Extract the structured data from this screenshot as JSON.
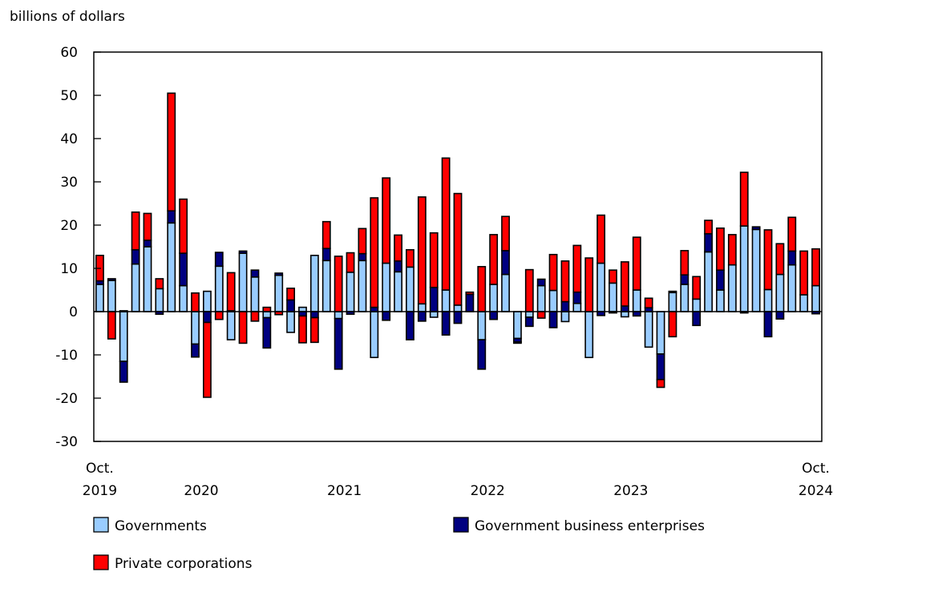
{
  "chart_data": {
    "type": "bar",
    "stacked": true,
    "ylabel": "billions of dollars",
    "ylim": [
      -30,
      60
    ],
    "yticks": [
      60,
      50,
      40,
      30,
      20,
      10,
      0,
      -10,
      -20,
      -30
    ],
    "grid": false,
    "legend_placement": "bottom",
    "x_tick_labels": [
      {
        "label": [
          "Oct.",
          "2019"
        ],
        "month": "2019-10"
      },
      {
        "label": [
          "",
          "2020"
        ],
        "month": "2020"
      },
      {
        "label": [
          "",
          "2021"
        ],
        "month": "2021"
      },
      {
        "label": [
          "",
          "2022"
        ],
        "month": "2022"
      },
      {
        "label": [
          "",
          "2023"
        ],
        "month": "2023"
      },
      {
        "label": [
          "Oct.",
          "2024"
        ],
        "month": "2024-10"
      }
    ],
    "categories": [
      "2019-10",
      "2019-11",
      "2019-12",
      "2020-01",
      "2020-02",
      "2020-03",
      "2020-04",
      "2020-05",
      "2020-06",
      "2020-07",
      "2020-08",
      "2020-09",
      "2020-10",
      "2020-11",
      "2020-12",
      "2021-01",
      "2021-02",
      "2021-03",
      "2021-04",
      "2021-05",
      "2021-06",
      "2021-07",
      "2021-08",
      "2021-09",
      "2021-10",
      "2021-11",
      "2021-12",
      "2022-01",
      "2022-02",
      "2022-03",
      "2022-04",
      "2022-05",
      "2022-06",
      "2022-07",
      "2022-08",
      "2022-09",
      "2022-10",
      "2022-11",
      "2022-12",
      "2023-01",
      "2023-02",
      "2023-03",
      "2023-04",
      "2023-05",
      "2023-06",
      "2023-07",
      "2023-08",
      "2023-09",
      "2023-10",
      "2023-11",
      "2023-12",
      "2024-01",
      "2024-02",
      "2024-03",
      "2024-04",
      "2024-05",
      "2024-06",
      "2024-07",
      "2024-08",
      "2024-09",
      "2024-10"
    ],
    "series": [
      {
        "name": "Governments",
        "color": "#99CCFF",
        "values": [
          6.3,
          7.2,
          -11.5,
          11,
          15,
          5.3,
          20.5,
          6,
          -7.5,
          4.7,
          10.5,
          -6.5,
          13.5,
          8,
          -1.4,
          8.4,
          -4.8,
          1,
          13,
          11.8,
          -1.6,
          9.1,
          11.8,
          -10.6,
          11.2,
          9.2,
          10.3,
          1.8,
          -1.3,
          5,
          1.5,
          0,
          -6.5,
          6.3,
          8.6,
          -6.2,
          -1.3,
          6,
          4.9,
          -2.3,
          1.9,
          -10.6,
          11.2,
          6.6,
          -1.2,
          5,
          -8.2,
          -9.8,
          4.4,
          6.3,
          2.9,
          13.8,
          5,
          10.8,
          19.8,
          19,
          5.1,
          8.6,
          10.8,
          3.9,
          6
        ]
      },
      {
        "name": "Government business enterprises",
        "color": "#000080",
        "values": [
          0.8,
          0.4,
          -4.8,
          3.3,
          1.5,
          -0.6,
          2.8,
          7.5,
          -3,
          -2.5,
          3.2,
          0.2,
          0.5,
          1.6,
          -7,
          0.5,
          2.7,
          -1,
          -1.4,
          2.8,
          -11.7,
          -0.6,
          1.6,
          1,
          -2,
          2.5,
          -6.5,
          -2.2,
          5.6,
          -5.4,
          -2.7,
          4,
          -6.8,
          -1.8,
          5.5,
          -0.8,
          -2.1,
          1.5,
          -3.7,
          2.3,
          2.6,
          0,
          -0.9,
          -0.3,
          1.3,
          -1,
          0.9,
          -5.9,
          0.3,
          2.2,
          -3.2,
          4.2,
          4.6,
          0,
          -0.3,
          0.6,
          -5.8,
          -1.7,
          3.2,
          0,
          -0.5
        ]
      },
      {
        "name": "Private corporations",
        "color": "#FF0000",
        "values": [
          5.9,
          -6.3,
          0.2,
          8.7,
          6.2,
          2.3,
          27.2,
          12.5,
          4.3,
          -17.3,
          -1.8,
          8.8,
          -7.3,
          -2.2,
          1,
          -0.7,
          2.7,
          -6.2,
          -5.7,
          6.2,
          12.8,
          4.5,
          5.8,
          25.3,
          19.7,
          6,
          4,
          24.7,
          12.6,
          30.5,
          25.8,
          0.5,
          10.4,
          11.5,
          7.9,
          -0.3,
          9.7,
          -1.5,
          8.3,
          9.4,
          10.8,
          12.4,
          11.1,
          3,
          10.2,
          12.2,
          2.2,
          -1.8,
          -5.8,
          5.6,
          5.2,
          3.1,
          9.7,
          7,
          12.4,
          0,
          13.8,
          7.1,
          7.8,
          10.1,
          8.5
        ]
      }
    ]
  }
}
